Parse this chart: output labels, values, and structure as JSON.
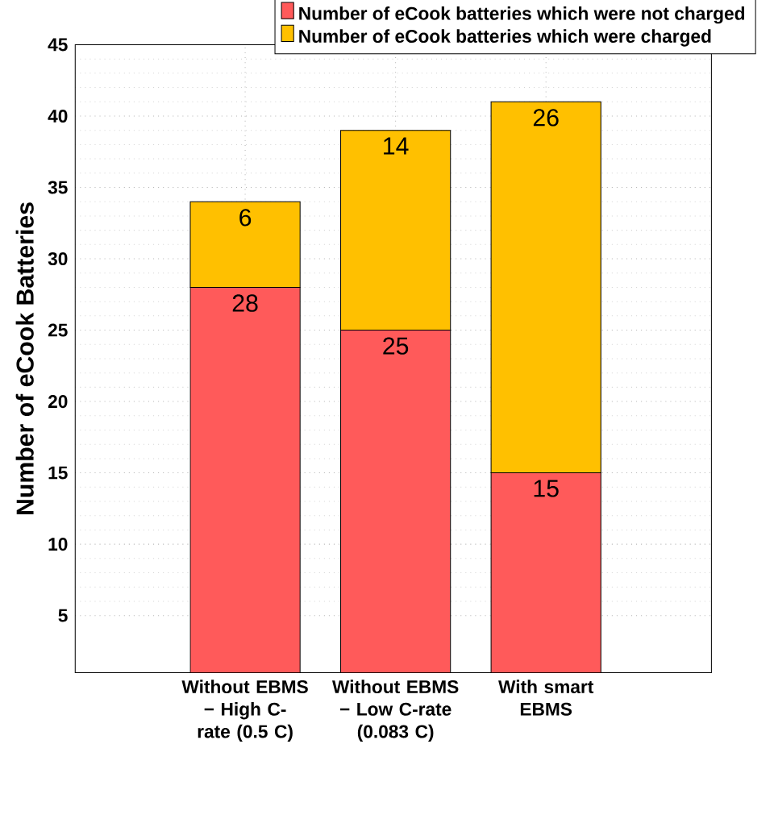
{
  "chart_data": {
    "type": "bar",
    "stacked": true,
    "categories": [
      "Without EBMS − High C-rate (0.5 C)",
      "Without EBMS − Low C-rate (0.083 C)",
      "With smart EBMS"
    ],
    "ylabel": "Number of eCook Batteries",
    "ylim": [
      1,
      45
    ],
    "yticks": [
      5,
      10,
      15,
      20,
      25,
      30,
      35,
      40,
      45
    ],
    "grid": true,
    "legend": "top right",
    "data_labels": true,
    "series": [
      {
        "name": "Number of eCook batteries which were not charged",
        "color": "#ff5a5a",
        "values": [
          28,
          25,
          15
        ]
      },
      {
        "name": "Number of eCook batteries which were charged",
        "color": "#ffc000",
        "values": [
          6,
          14,
          26
        ]
      }
    ]
  }
}
